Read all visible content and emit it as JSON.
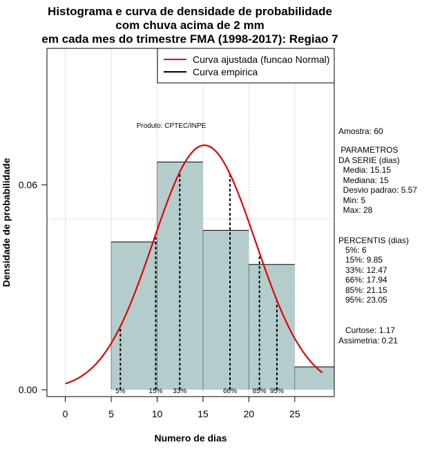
{
  "chart_data": {
    "type": "histogram",
    "title_lines": [
      "Histograma e curva de densidade de probabilidade",
      "com chuva acima de 2 mm",
      "em cada mes do trimestre FMA (1998-2017): Regiao 7"
    ],
    "xlabel": "Numero de dias",
    "ylabel": "Densidade de probabilidade",
    "xlim": [
      -2,
      29.3
    ],
    "ylim": [
      -0.002,
      0.1
    ],
    "x_ticks": [
      0,
      5,
      10,
      15,
      20,
      25
    ],
    "y_ticks": [
      0.0,
      0.06
    ],
    "y_tick_labels": [
      "0.00",
      "0.06"
    ],
    "grid_x": [
      0,
      5,
      10,
      15,
      20,
      25
    ],
    "grid_y": [
      0.05,
      0.1
    ],
    "bins": [
      {
        "start": 5,
        "end": 10,
        "density": 0.0433
      },
      {
        "start": 10,
        "end": 15,
        "density": 0.0667
      },
      {
        "start": 15,
        "end": 20,
        "density": 0.0467
      },
      {
        "start": 20,
        "end": 25,
        "density": 0.0367
      },
      {
        "start": 25,
        "end": 30,
        "density": 0.0067
      }
    ],
    "bar_color": "#b5cccc",
    "normal_curve": {
      "mean": 15.15,
      "sd": 5.57,
      "x_from": 0,
      "x_to": 28,
      "color": "#e00000"
    },
    "percentile_lines": [
      {
        "label": "5%",
        "x": 6
      },
      {
        "label": "15%",
        "x": 9.85
      },
      {
        "label": "33%",
        "x": 12.47
      },
      {
        "label": "66%",
        "x": 17.94
      },
      {
        "label": "85%",
        "x": 21.15
      },
      {
        "label": "95%",
        "x": 23.05
      }
    ],
    "legend": [
      {
        "label": "Curva ajustada (funcao Normal)",
        "color": "#e00000"
      },
      {
        "label": "Curva empirica",
        "color": "#000000"
      }
    ],
    "legend_position": "top-right",
    "credit": "Produto: CPTEC/INPE"
  },
  "side_panel": {
    "lines": [
      "Amostra: 60",
      " PARAMETROS",
      "DA SERIE (dias)",
      "  Media: 15.15",
      "  Mediana: 15",
      "  Desvio padrao: 5.57",
      "  Min: 5",
      "  Max: 28",
      "PERCENTIS (dias)",
      "   5%: 6",
      "   15%: 9.85",
      "   33%: 12.47",
      "   66%: 17.94",
      "   85%: 21.15",
      "   95%: 23.05",
      "   Curtose: 1.17",
      "Assimetria: 0.21"
    ]
  }
}
